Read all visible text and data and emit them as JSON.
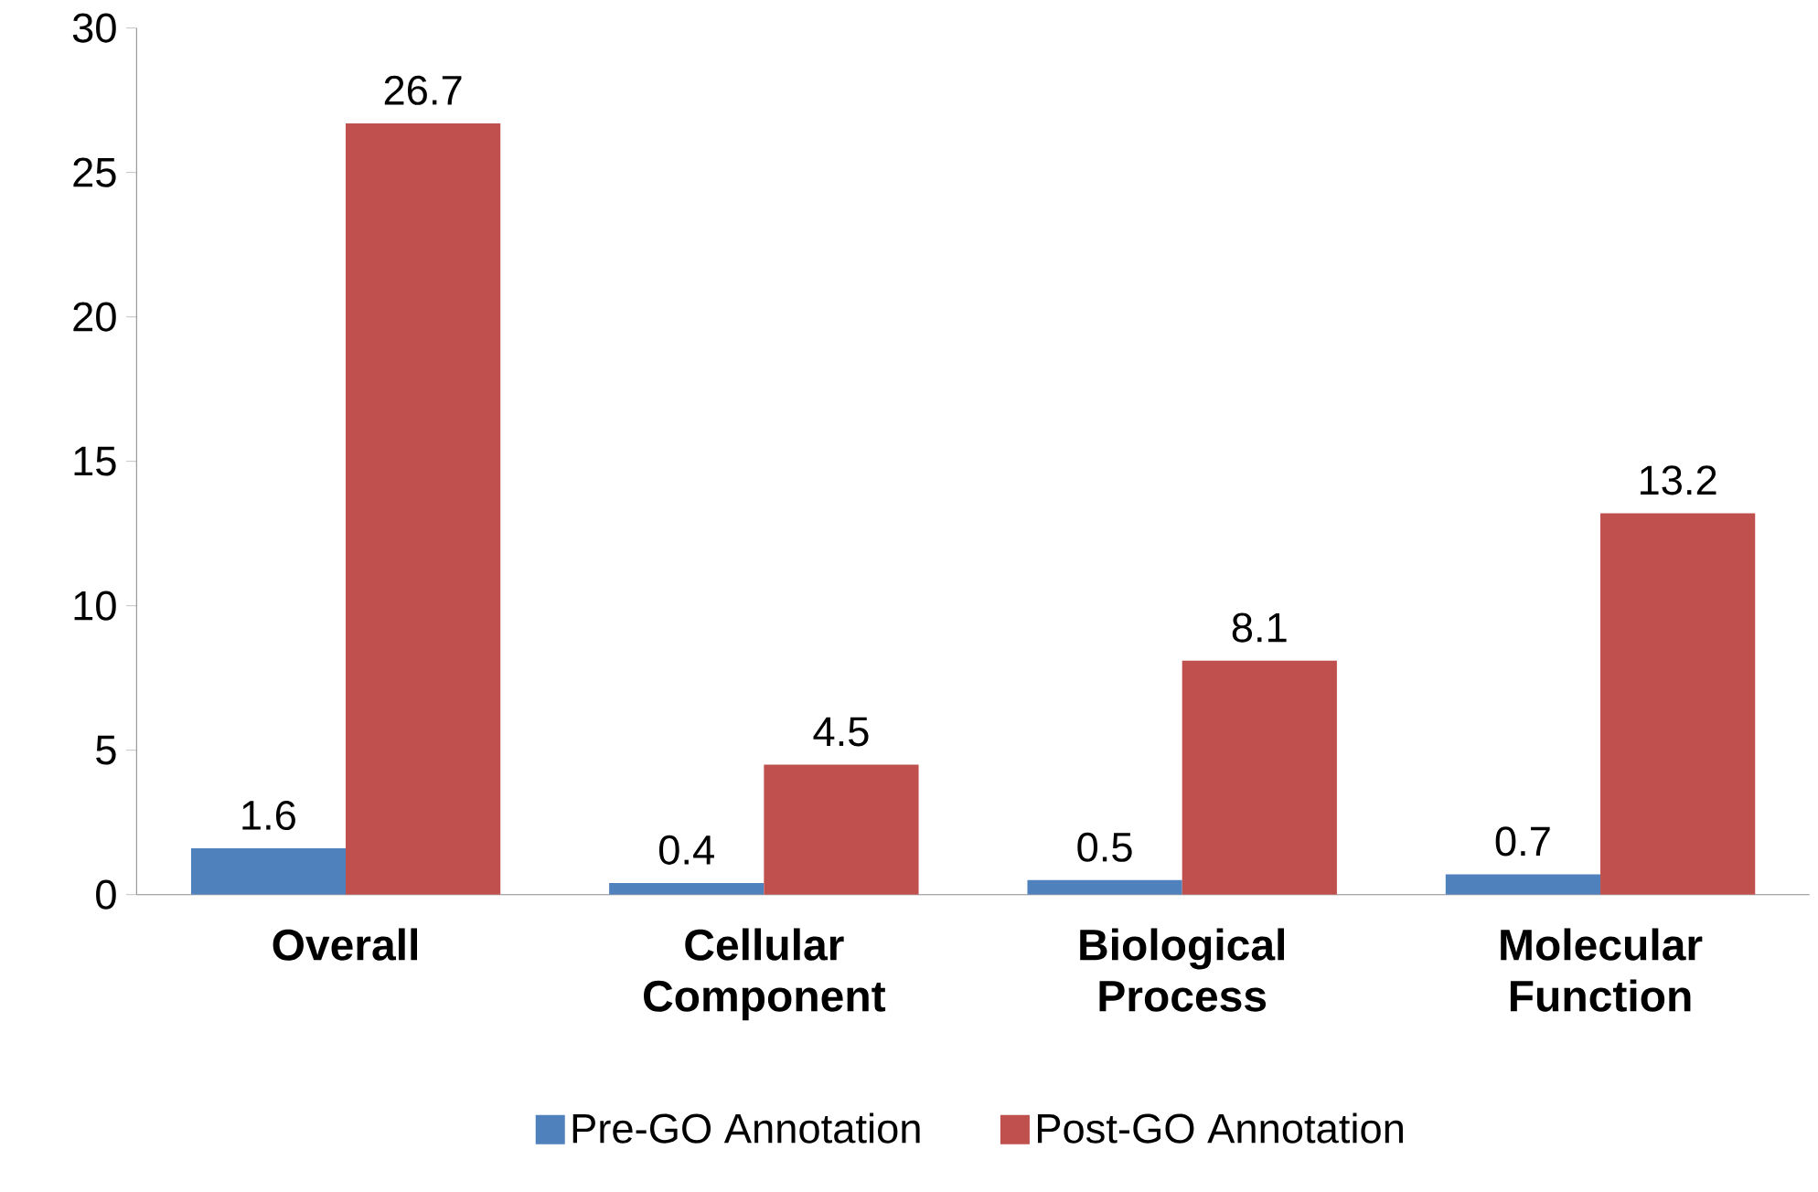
{
  "chart_data": {
    "type": "bar",
    "categories": [
      "Overall",
      "Cellular Component",
      "Biological Process",
      "Molecular Function"
    ],
    "series": [
      {
        "name": "Pre-GO Annotation",
        "color": "#4f81bd",
        "values": [
          1.6,
          0.4,
          0.5,
          0.7
        ]
      },
      {
        "name": "Post-GO Annotation",
        "color": "#c0504d",
        "values": [
          26.7,
          4.5,
          8.1,
          13.2
        ]
      }
    ],
    "ylim": [
      0,
      30
    ],
    "yticks": [
      0,
      5,
      10,
      15,
      20,
      25,
      30
    ],
    "data_labels": true,
    "legend": "bottom",
    "grid": false
  }
}
